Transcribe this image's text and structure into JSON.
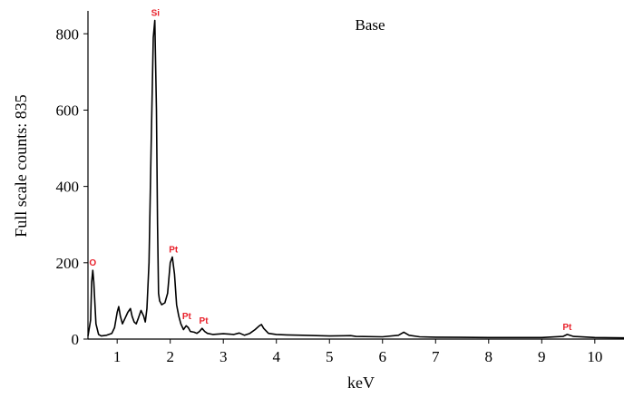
{
  "chart_data": {
    "type": "line",
    "title": "Base",
    "xlabel": "keV",
    "ylabel": "Full scale counts: 835",
    "xlim": [
      0.45,
      10.55
    ],
    "ylim": [
      0,
      860
    ],
    "xticks": [
      1,
      2,
      3,
      4,
      5,
      6,
      7,
      8,
      9,
      10
    ],
    "yticks": [
      0,
      200,
      400,
      600,
      800
    ],
    "grid": false,
    "line_color": "#000000",
    "label_color": "#e8202a",
    "series": [
      {
        "x": [
          0.45,
          0.5,
          0.52,
          0.54,
          0.56,
          0.6,
          0.65,
          0.7,
          0.8,
          0.9,
          0.95,
          1.0,
          1.03,
          1.06,
          1.1,
          1.15,
          1.2,
          1.25,
          1.28,
          1.32,
          1.36,
          1.4,
          1.45,
          1.5,
          1.53,
          1.56,
          1.6,
          1.64,
          1.68,
          1.71,
          1.74,
          1.76,
          1.78,
          1.8,
          1.84,
          1.9,
          1.95,
          2.0,
          2.04,
          2.08,
          2.12,
          2.16,
          2.2,
          2.25,
          2.3,
          2.34,
          2.38,
          2.45,
          2.5,
          2.55,
          2.6,
          2.65,
          2.7,
          2.8,
          3.0,
          3.2,
          3.3,
          3.4,
          3.5,
          3.6,
          3.68,
          3.72,
          3.76,
          3.85,
          4.0,
          4.2,
          4.5,
          5.0,
          5.4,
          5.5,
          6.0,
          6.3,
          6.4,
          6.5,
          6.7,
          7.0,
          8.0,
          9.0,
          9.4,
          9.48,
          9.6,
          10.0,
          10.55
        ],
        "y": [
          8,
          50,
          150,
          180,
          150,
          40,
          12,
          8,
          10,
          15,
          30,
          70,
          85,
          60,
          40,
          55,
          70,
          80,
          60,
          45,
          40,
          55,
          75,
          60,
          45,
          80,
          200,
          500,
          790,
          835,
          600,
          300,
          120,
          100,
          90,
          95,
          120,
          200,
          215,
          170,
          90,
          60,
          40,
          25,
          35,
          30,
          20,
          18,
          15,
          20,
          28,
          20,
          15,
          12,
          14,
          12,
          16,
          10,
          15,
          25,
          35,
          38,
          28,
          15,
          12,
          11,
          10,
          8,
          9,
          7,
          6,
          10,
          18,
          10,
          6,
          5,
          4,
          4,
          7,
          12,
          7,
          4,
          3
        ]
      }
    ],
    "peak_labels": [
      {
        "text": "O",
        "x": 0.54,
        "y": 180
      },
      {
        "text": "Si",
        "x": 1.72,
        "y": 835
      },
      {
        "text": "Pt",
        "x": 2.06,
        "y": 215
      },
      {
        "text": "Pt",
        "x": 2.31,
        "y": 40
      },
      {
        "text": "Pt",
        "x": 2.63,
        "y": 28
      },
      {
        "text": "Pt",
        "x": 9.48,
        "y": 12
      }
    ]
  }
}
